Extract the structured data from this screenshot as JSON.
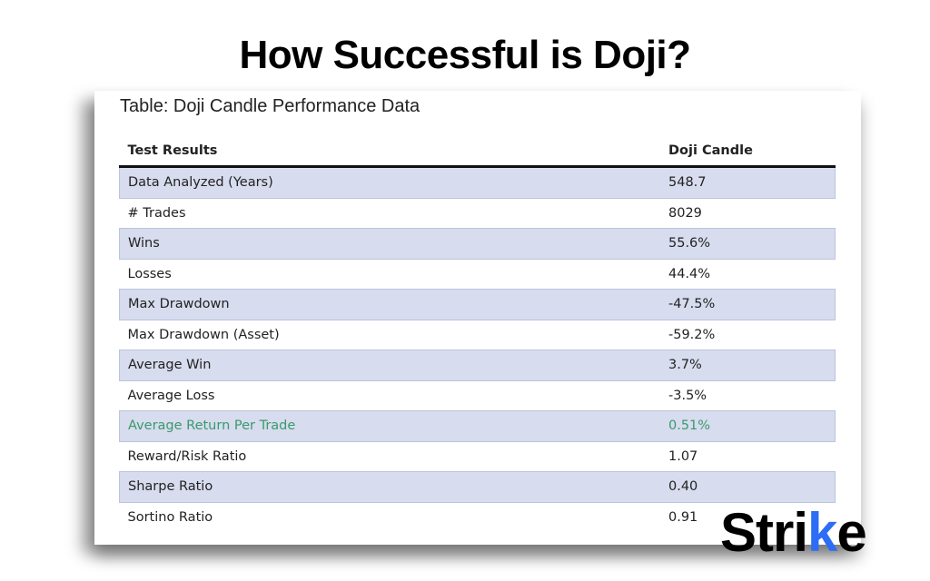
{
  "title": "How Successful is Doji?",
  "caption": "Table: Doji Candle Performance Data",
  "table": {
    "headers": [
      "Test Results",
      "Doji Candle"
    ],
    "rows": [
      {
        "label": "Data Analyzed (Years)",
        "value": "548.7"
      },
      {
        "label": "# Trades",
        "value": "8029"
      },
      {
        "label": "Wins",
        "value": "55.6%"
      },
      {
        "label": "Losses",
        "value": "44.4%"
      },
      {
        "label": "Max Drawdown",
        "value": "-47.5%"
      },
      {
        "label": "Max Drawdown (Asset)",
        "value": "-59.2%"
      },
      {
        "label": "Average Win",
        "value": "3.7%"
      },
      {
        "label": "Average Loss",
        "value": "-3.5%"
      },
      {
        "label": "Average Return Per Trade",
        "value": "0.51%"
      },
      {
        "label": "Reward/Risk Ratio",
        "value": "1.07"
      },
      {
        "label": "Sharpe Ratio",
        "value": "0.40"
      },
      {
        "label": "Sortino Ratio",
        "value": "0.91"
      }
    ]
  },
  "logo": {
    "prefix": "Stri",
    "accent": "k",
    "suffix": "e"
  },
  "colors": {
    "row_shade": "#d7dcee",
    "highlight_text": "#3a9a6c",
    "logo_accent": "#2d6df6"
  }
}
